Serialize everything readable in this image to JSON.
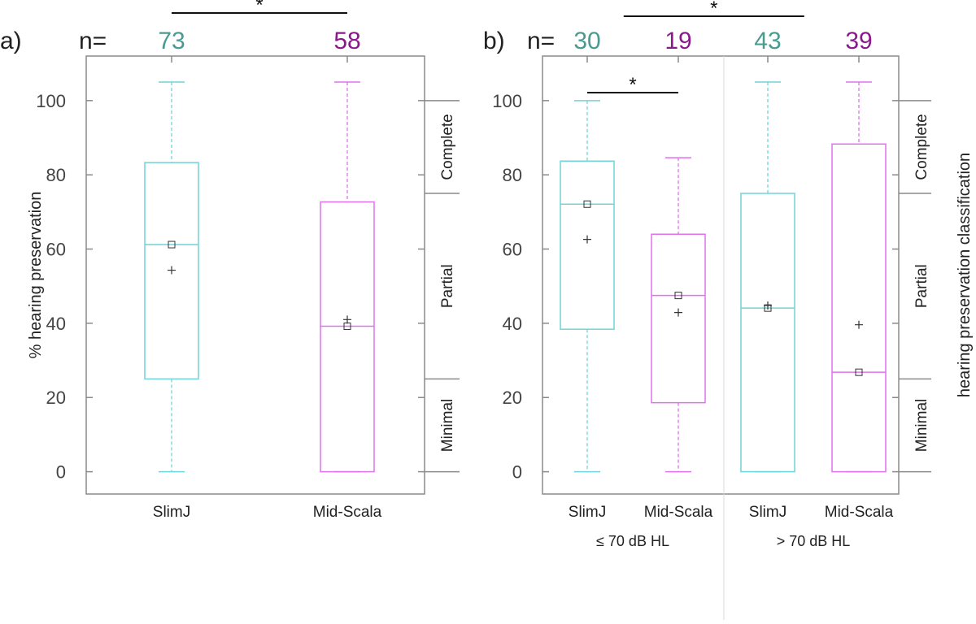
{
  "chart_data": [
    {
      "type": "box",
      "panel_label": "a)",
      "n_prefix": "n=",
      "ylabel": "% hearing preservation",
      "ylim": [
        -6,
        112
      ],
      "yticks": [
        0,
        20,
        40,
        60,
        80,
        100
      ],
      "categories": [
        "SlimJ",
        "Mid-Scala"
      ],
      "group_labels": [],
      "series": [
        {
          "n": "73",
          "whisker_low": 0,
          "q1": 25,
          "median": 61.2,
          "q3": 83.3,
          "whisker_high": 105,
          "mean": 54.3,
          "color": "#70d4d8",
          "n_color": "#4a9a90"
        },
        {
          "n": "58",
          "whisker_low": 0,
          "q1": 0,
          "median": 39.2,
          "q3": 72.7,
          "whisker_high": 105,
          "mean": 41.0,
          "color": "#e070ee",
          "n_color": "#8a1a8a"
        }
      ],
      "significance": [
        {
          "from": 0,
          "to": 1,
          "label": "*"
        }
      ],
      "classification": {
        "boundaries": [
          0,
          25,
          75,
          100
        ],
        "labels": [
          "Minimal",
          "Partial",
          "Complete"
        ]
      }
    },
    {
      "type": "box",
      "panel_label": "b)",
      "n_prefix": "n=",
      "ylabel": "",
      "right_label": "hearing preservation classification",
      "ylim": [
        -6,
        112
      ],
      "yticks": [
        0,
        20,
        40,
        60,
        80,
        100
      ],
      "categories": [
        "SlimJ",
        "Mid-Scala",
        "SlimJ",
        "Mid-Scala"
      ],
      "group_labels": [
        "≤ 70 dB HL",
        "> 70 dB HL"
      ],
      "series": [
        {
          "n": "30",
          "whisker_low": 0,
          "q1": 38.4,
          "median": 72.1,
          "q3": 83.7,
          "whisker_high": 100,
          "mean": 62.6,
          "color": "#70d4d8",
          "n_color": "#4a9a90"
        },
        {
          "n": "19",
          "whisker_low": 0,
          "q1": 18.6,
          "median": 47.5,
          "q3": 64.0,
          "whisker_high": 84.6,
          "mean": 42.9,
          "color": "#e070ee",
          "n_color": "#8a1a8a"
        },
        {
          "n": "43",
          "whisker_low": 0,
          "q1": 0,
          "median": 44.1,
          "q3": 75.0,
          "whisker_high": 105,
          "mean": 44.8,
          "color": "#70d4d8",
          "n_color": "#4a9a90"
        },
        {
          "n": "39",
          "whisker_low": 0,
          "q1": 0,
          "median": 26.8,
          "q3": 88.3,
          "whisker_high": 105,
          "mean": 39.6,
          "color": "#e070ee",
          "n_color": "#8a1a8a"
        }
      ],
      "significance": [
        {
          "from": 0,
          "to": 1,
          "label": "*"
        },
        {
          "from": 0.4,
          "to": 2.4,
          "label": "*",
          "top": true
        }
      ],
      "classification": {
        "boundaries": [
          0,
          25,
          75,
          100
        ],
        "labels": [
          "Minimal",
          "Partial",
          "Complete"
        ]
      }
    }
  ]
}
